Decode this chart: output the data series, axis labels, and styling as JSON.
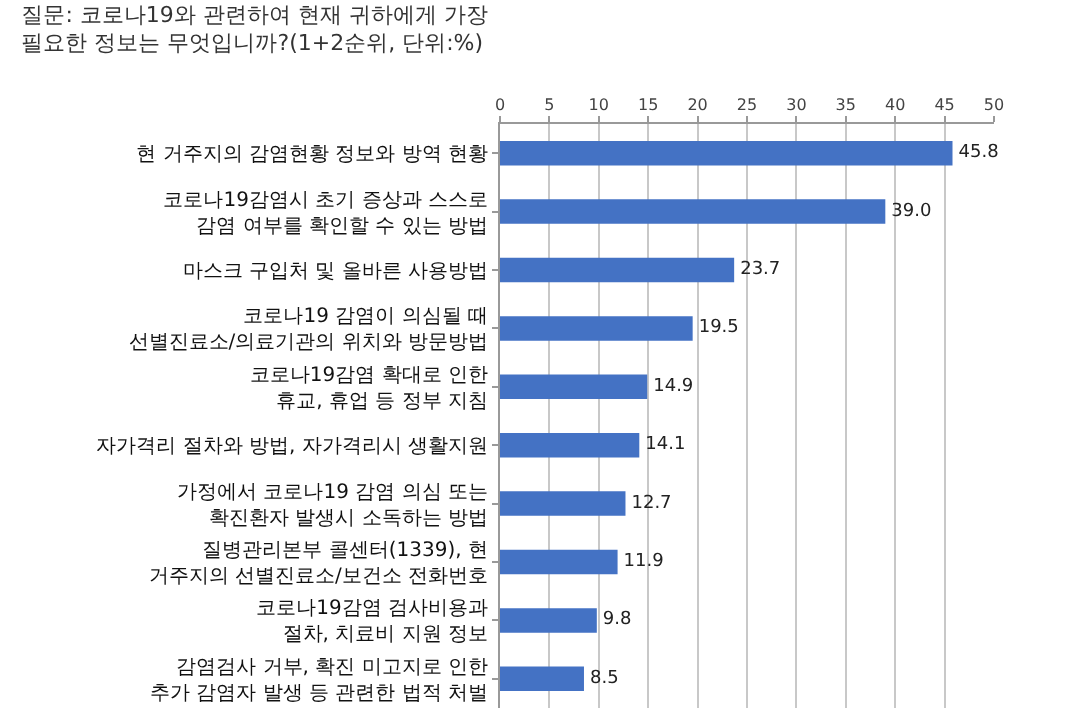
{
  "chart_data": {
    "type": "bar",
    "orientation": "horizontal",
    "title": "질문: 코로나19와 관련하여 현재 귀하에게 가장 필요한 정보는 무엇입니까?(1+2순위, 단위:%)",
    "categories": [
      "현 거주지의 감염현황 정보와 방역 현황",
      "코로나19감염시 초기 증상과 스스로 감염 여부를 확인할 수 있는 방법",
      "마스크 구입처 및 올바른 사용방법",
      "코로나19 감염이 의심될 때 선별진료소/의료기관의 위치와 방문방법",
      "코로나19감염 확대로 인한 휴교, 휴업 등 정부 지침",
      "자가격리 절차와 방법, 자가격리시 생활지원",
      "가정에서 코로나19 감염 의심 또는 확진환자 발생시 소독하는 방법",
      "질병관리본부 콜센터(1339), 현 거주지의 선별진료소/보건소 전화번호",
      "코로나19감염 검사비용과 절차, 치료비 지원 정보",
      "감염검사 거부, 확진 미고지로 인한 추가 감염자 발생 등 관련한 법적 처벌"
    ],
    "values": [
      45.8,
      39.0,
      23.7,
      19.5,
      14.9,
      14.1,
      12.7,
      11.9,
      9.8,
      8.5
    ],
    "value_labels": [
      "45.8",
      "39.0",
      "23.7",
      "19.5",
      "14.9",
      "14.1",
      "12.7",
      "11.9",
      "9.8",
      "8.5"
    ],
    "color": "#4472c4",
    "xlim": [
      0,
      50
    ],
    "xticks": [
      0,
      5,
      10,
      15,
      20,
      25,
      30,
      35,
      40,
      45,
      50
    ],
    "grid": "x"
  }
}
